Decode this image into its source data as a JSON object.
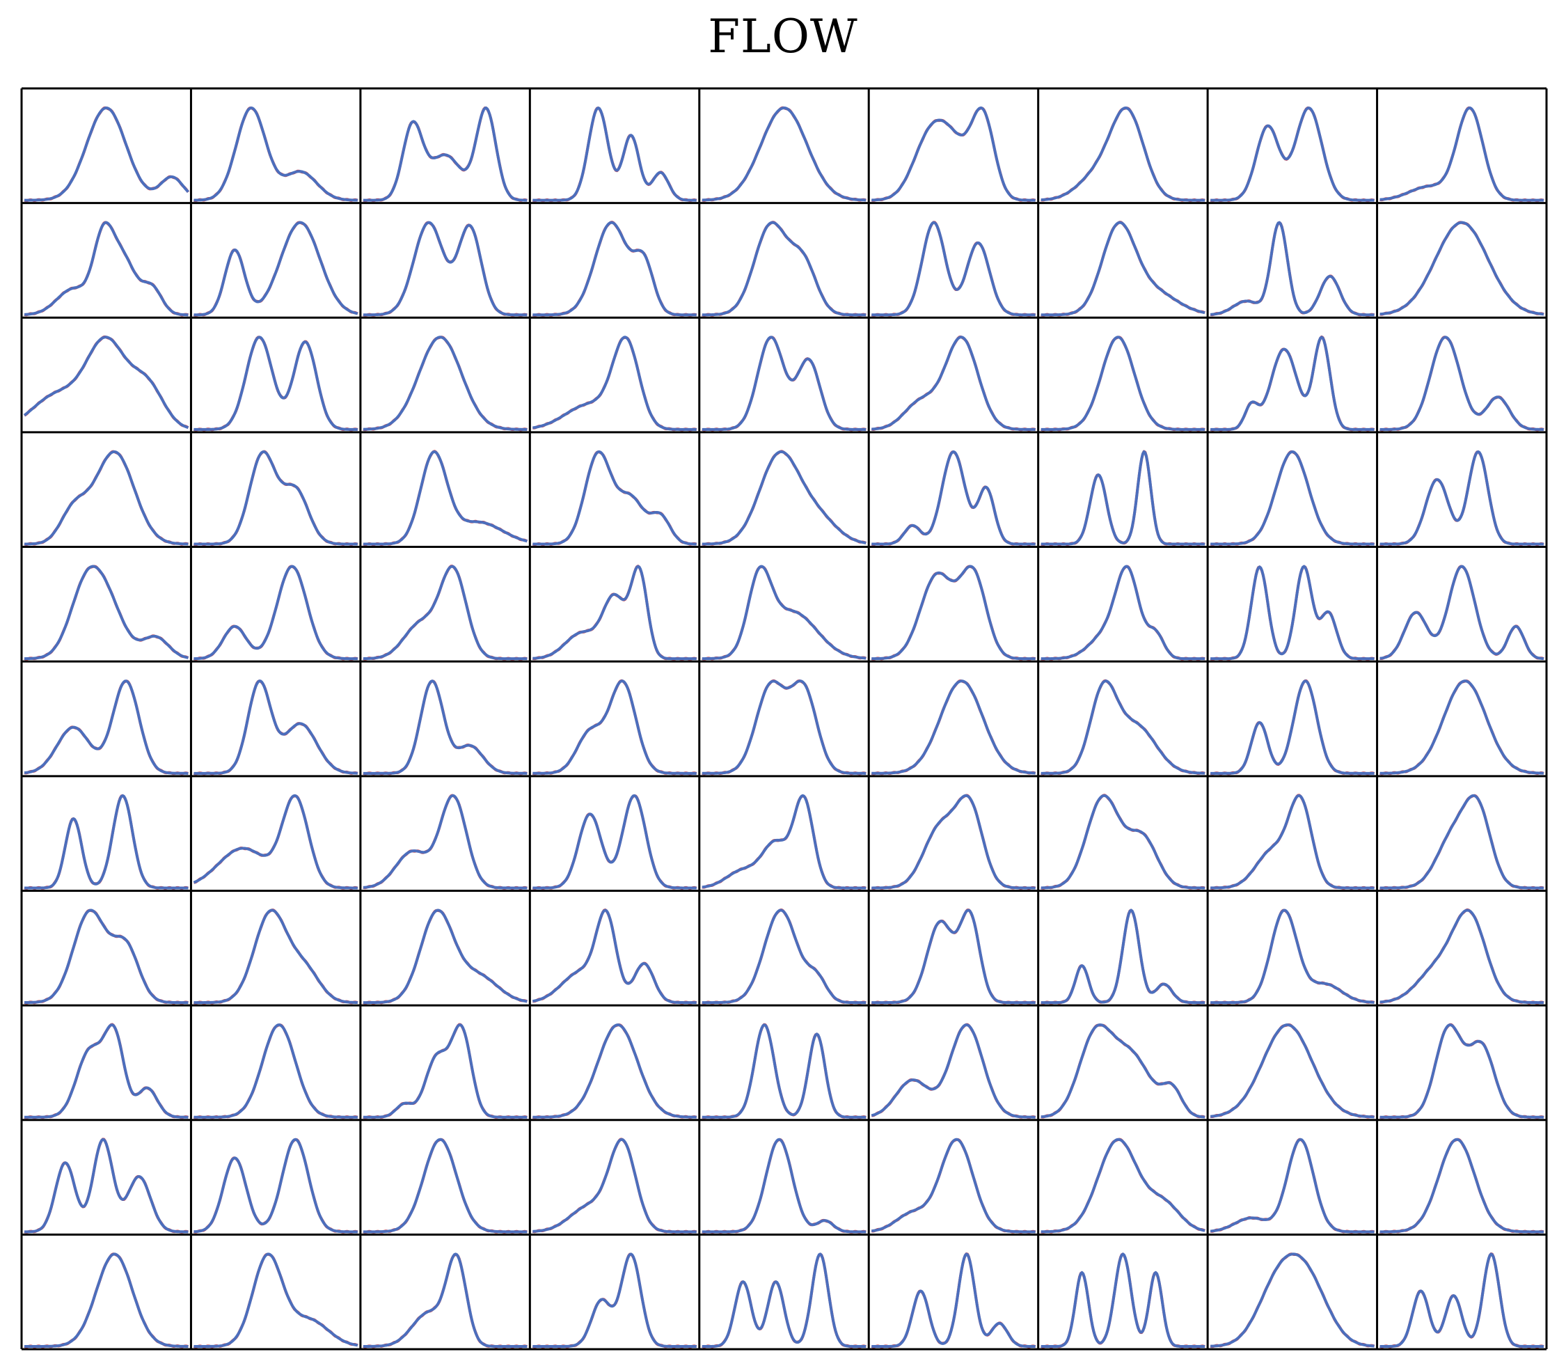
{
  "title": "FLOW",
  "chart_data": {
    "type": "line",
    "title": "FLOW",
    "layout": {
      "rows": 11,
      "cols": 9
    },
    "colors": {
      "true": "#d6474b",
      "model": "#4c6ebc",
      "frame": "#000000"
    },
    "x": [
      0,
      0.25,
      0.5,
      0.75,
      1
    ],
    "panels": [
      [
        [
          0.6,
          0.5,
          0.12
        ],
        [
          0.15,
          0.9,
          0.07
        ]
      ],
      [
        [
          0.3,
          0.65,
          0.1
        ],
        [
          0.97,
          0.35,
          0.09
        ]
      ],
      [
        [
          0.8,
          0.3,
          0.06
        ],
        [
          0.5,
          0.5,
          0.1
        ],
        [
          1,
          0.75,
          0.06
        ]
      ],
      [
        [
          1,
          0.4,
          0.06
        ],
        [
          0.7,
          0.6,
          0.05
        ],
        [
          0.3,
          0.78,
          0.05
        ]
      ],
      [
        [
          1,
          0.5,
          0.14
        ]
      ],
      [
        [
          0.7,
          0.35,
          0.1
        ],
        [
          0.6,
          0.5,
          0.1
        ],
        [
          1,
          0.68,
          0.07
        ]
      ],
      [
        [
          0.3,
          0.35,
          0.12
        ],
        [
          1,
          0.53,
          0.1
        ]
      ],
      [
        [
          0.8,
          0.35,
          0.07
        ],
        [
          1,
          0.6,
          0.08
        ]
      ],
      [
        [
          0.15,
          0.3,
          0.12
        ],
        [
          1,
          0.55,
          0.08
        ]
      ],
      [
        [
          0.35,
          0.3,
          0.1
        ],
        [
          0.9,
          0.48,
          0.06
        ],
        [
          0.75,
          0.6,
          0.08
        ],
        [
          0.35,
          0.78,
          0.06
        ]
      ],
      [
        [
          0.7,
          0.25,
          0.06
        ],
        [
          1,
          0.65,
          0.12
        ]
      ],
      [
        [
          1,
          0.4,
          0.09
        ],
        [
          0.95,
          0.65,
          0.07
        ]
      ],
      [
        [
          0.95,
          0.48,
          0.1
        ],
        [
          0.5,
          0.68,
          0.06
        ]
      ],
      [
        [
          1,
          0.42,
          0.1
        ],
        [
          0.55,
          0.62,
          0.08
        ]
      ],
      [
        [
          1,
          0.38,
          0.07
        ],
        [
          0.78,
          0.65,
          0.07
        ]
      ],
      [
        [
          1,
          0.47,
          0.1
        ],
        [
          0.3,
          0.67,
          0.15
        ]
      ],
      [
        [
          0.15,
          0.22,
          0.08
        ],
        [
          1,
          0.42,
          0.05
        ],
        [
          0.42,
          0.73,
          0.06
        ]
      ],
      [
        [
          1,
          0.5,
          0.16
        ]
      ],
      [
        [
          0.4,
          0.2,
          0.15
        ],
        [
          1,
          0.5,
          0.12
        ],
        [
          0.5,
          0.75,
          0.1
        ]
      ],
      [
        [
          0.95,
          0.4,
          0.08
        ],
        [
          0.9,
          0.68,
          0.07
        ]
      ],
      [
        [
          1,
          0.47,
          0.13
        ]
      ],
      [
        [
          0.3,
          0.35,
          0.15
        ],
        [
          1,
          0.57,
          0.08
        ]
      ],
      [
        [
          1,
          0.42,
          0.08
        ],
        [
          0.75,
          0.65,
          0.07
        ]
      ],
      [
        [
          0.3,
          0.3,
          0.1
        ],
        [
          1,
          0.55,
          0.1
        ]
      ],
      [
        [
          1,
          0.47,
          0.1
        ]
      ],
      [
        [
          0.22,
          0.25,
          0.04
        ],
        [
          0.75,
          0.45,
          0.08
        ],
        [
          0.85,
          0.68,
          0.05
        ]
      ],
      [
        [
          1,
          0.4,
          0.09
        ],
        [
          0.35,
          0.72,
          0.07
        ]
      ],
      [
        [
          0.35,
          0.3,
          0.08
        ],
        [
          1,
          0.55,
          0.12
        ]
      ],
      [
        [
          1,
          0.42,
          0.08
        ],
        [
          0.6,
          0.62,
          0.08
        ]
      ],
      [
        [
          1,
          0.43,
          0.08
        ],
        [
          0.25,
          0.7,
          0.15
        ]
      ],
      [
        [
          1,
          0.4,
          0.08
        ],
        [
          0.5,
          0.6,
          0.08
        ],
        [
          0.3,
          0.78,
          0.06
        ]
      ],
      [
        [
          1,
          0.47,
          0.12
        ],
        [
          0.3,
          0.7,
          0.12
        ]
      ],
      [
        [
          0.2,
          0.25,
          0.05
        ],
        [
          1,
          0.5,
          0.07
        ],
        [
          0.6,
          0.7,
          0.05
        ]
      ],
      [
        [
          0.75,
          0.35,
          0.05
        ],
        [
          1,
          0.63,
          0.04
        ]
      ],
      [
        [
          1,
          0.5,
          0.1
        ]
      ],
      [
        [
          0.7,
          0.35,
          0.07
        ],
        [
          1,
          0.6,
          0.06
        ]
      ],
      [
        [
          1,
          0.38,
          0.1
        ],
        [
          0.6,
          0.52,
          0.1
        ],
        [
          0.3,
          0.8,
          0.08
        ]
      ],
      [
        [
          0.35,
          0.25,
          0.07
        ],
        [
          1,
          0.6,
          0.09
        ]
      ],
      [
        [
          0.4,
          0.35,
          0.1
        ],
        [
          1,
          0.55,
          0.08
        ]
      ],
      [
        [
          0.3,
          0.3,
          0.1
        ],
        [
          0.7,
          0.5,
          0.07
        ],
        [
          1,
          0.65,
          0.05
        ]
      ],
      [
        [
          1,
          0.35,
          0.07
        ],
        [
          0.65,
          0.55,
          0.15
        ]
      ],
      [
        [
          0.9,
          0.4,
          0.1
        ],
        [
          0.9,
          0.62,
          0.08
        ]
      ],
      [
        [
          0.3,
          0.4,
          0.1
        ],
        [
          1,
          0.53,
          0.07
        ],
        [
          0.3,
          0.7,
          0.05
        ]
      ],
      [
        [
          1,
          0.3,
          0.05
        ],
        [
          1,
          0.57,
          0.05
        ],
        [
          0.5,
          0.72,
          0.05
        ]
      ],
      [
        [
          0.5,
          0.22,
          0.07
        ],
        [
          1,
          0.5,
          0.08
        ],
        [
          0.35,
          0.83,
          0.05
        ]
      ],
      [
        [
          0.5,
          0.3,
          0.1
        ],
        [
          1,
          0.62,
          0.08
        ]
      ],
      [
        [
          1,
          0.4,
          0.07
        ],
        [
          0.55,
          0.65,
          0.1
        ]
      ],
      [
        [
          1,
          0.42,
          0.07
        ],
        [
          0.3,
          0.65,
          0.08
        ]
      ],
      [
        [
          0.45,
          0.35,
          0.08
        ],
        [
          1,
          0.55,
          0.08
        ]
      ],
      [
        [
          0.95,
          0.42,
          0.09
        ],
        [
          0.9,
          0.62,
          0.08
        ]
      ],
      [
        [
          1,
          0.55,
          0.13
        ]
      ],
      [
        [
          1,
          0.38,
          0.08
        ],
        [
          0.6,
          0.58,
          0.12
        ]
      ],
      [
        [
          0.55,
          0.3,
          0.05
        ],
        [
          1,
          0.58,
          0.07
        ]
      ],
      [
        [
          1,
          0.52,
          0.13
        ]
      ],
      [
        [
          0.75,
          0.3,
          0.05
        ],
        [
          1,
          0.6,
          0.06
        ]
      ],
      [
        [
          0.45,
          0.3,
          0.15
        ],
        [
          1,
          0.62,
          0.08
        ]
      ],
      [
        [
          0.4,
          0.3,
          0.1
        ],
        [
          1,
          0.55,
          0.08
        ]
      ],
      [
        [
          0.8,
          0.35,
          0.07
        ],
        [
          1,
          0.62,
          0.07
        ]
      ],
      [
        [
          0.2,
          0.25,
          0.1
        ],
        [
          0.5,
          0.45,
          0.08
        ],
        [
          1,
          0.62,
          0.06
        ]
      ],
      [
        [
          0.7,
          0.42,
          0.1
        ],
        [
          0.9,
          0.6,
          0.08
        ]
      ],
      [
        [
          1,
          0.38,
          0.1
        ],
        [
          0.55,
          0.62,
          0.09
        ]
      ],
      [
        [
          0.45,
          0.38,
          0.1
        ],
        [
          1,
          0.55,
          0.07
        ]
      ],
      [
        [
          0.65,
          0.45,
          0.1
        ],
        [
          0.9,
          0.6,
          0.08
        ]
      ],
      [
        [
          1,
          0.4,
          0.1
        ],
        [
          0.6,
          0.62,
          0.08
        ]
      ],
      [
        [
          1,
          0.47,
          0.1
        ],
        [
          0.35,
          0.68,
          0.09
        ]
      ],
      [
        [
          1,
          0.45,
          0.1
        ],
        [
          0.3,
          0.7,
          0.12
        ]
      ],
      [
        [
          0.4,
          0.3,
          0.12
        ],
        [
          1,
          0.45,
          0.06
        ],
        [
          0.5,
          0.68,
          0.06
        ]
      ],
      [
        [
          1,
          0.48,
          0.1
        ],
        [
          0.25,
          0.7,
          0.06
        ]
      ],
      [
        [
          0.85,
          0.42,
          0.08
        ],
        [
          0.9,
          0.6,
          0.06
        ]
      ],
      [
        [
          0.4,
          0.25,
          0.04
        ],
        [
          1,
          0.55,
          0.05
        ],
        [
          0.2,
          0.75,
          0.05
        ]
      ],
      [
        [
          1,
          0.45,
          0.08
        ],
        [
          0.2,
          0.7,
          0.1
        ]
      ],
      [
        [
          0.4,
          0.35,
          0.12
        ],
        [
          1,
          0.55,
          0.1
        ]
      ],
      [
        [
          0.8,
          0.4,
          0.08
        ],
        [
          0.95,
          0.55,
          0.06
        ],
        [
          0.35,
          0.75,
          0.06
        ]
      ],
      [
        [
          1,
          0.52,
          0.1
        ]
      ],
      [
        [
          0.15,
          0.25,
          0.05
        ],
        [
          0.7,
          0.45,
          0.07
        ],
        [
          1,
          0.6,
          0.06
        ]
      ],
      [
        [
          1,
          0.52,
          0.12
        ]
      ],
      [
        [
          1,
          0.38,
          0.06
        ],
        [
          0.9,
          0.7,
          0.05
        ]
      ],
      [
        [
          0.4,
          0.25,
          0.1
        ],
        [
          1,
          0.58,
          0.1
        ]
      ],
      [
        [
          0.9,
          0.33,
          0.1
        ],
        [
          0.7,
          0.55,
          0.12
        ],
        [
          0.3,
          0.8,
          0.06
        ]
      ],
      [
        [
          1,
          0.47,
          0.15
        ]
      ],
      [
        [
          1,
          0.42,
          0.08
        ],
        [
          0.8,
          0.62,
          0.08
        ]
      ],
      [
        [
          0.75,
          0.25,
          0.06
        ],
        [
          1,
          0.48,
          0.06
        ],
        [
          0.6,
          0.7,
          0.07
        ]
      ],
      [
        [
          0.8,
          0.25,
          0.07
        ],
        [
          1,
          0.62,
          0.08
        ]
      ],
      [
        [
          1,
          0.47,
          0.1
        ]
      ],
      [
        [
          0.3,
          0.35,
          0.12
        ],
        [
          1,
          0.55,
          0.08
        ]
      ],
      [
        [
          1,
          0.47,
          0.08
        ],
        [
          0.12,
          0.75,
          0.05
        ]
      ],
      [
        [
          0.2,
          0.25,
          0.1
        ],
        [
          1,
          0.52,
          0.1
        ]
      ],
      [
        [
          1,
          0.47,
          0.12
        ],
        [
          0.3,
          0.75,
          0.1
        ]
      ],
      [
        [
          0.15,
          0.25,
          0.1
        ],
        [
          1,
          0.55,
          0.08
        ]
      ],
      [
        [
          1,
          0.47,
          0.11
        ]
      ],
      [
        [
          1,
          0.55,
          0.11
        ]
      ],
      [
        [
          1,
          0.45,
          0.09
        ],
        [
          0.3,
          0.7,
          0.12
        ]
      ],
      [
        [
          0.4,
          0.4,
          0.1
        ],
        [
          1,
          0.57,
          0.06
        ]
      ],
      [
        [
          0.5,
          0.42,
          0.06
        ],
        [
          1,
          0.6,
          0.06
        ]
      ],
      [
        [
          0.7,
          0.25,
          0.05
        ],
        [
          0.7,
          0.45,
          0.05
        ],
        [
          1,
          0.72,
          0.05
        ]
      ],
      [
        [
          0.6,
          0.3,
          0.05
        ],
        [
          1,
          0.58,
          0.05
        ],
        [
          0.25,
          0.78,
          0.05
        ]
      ],
      [
        [
          0.8,
          0.25,
          0.04
        ],
        [
          1,
          0.5,
          0.05
        ],
        [
          0.8,
          0.7,
          0.04
        ]
      ],
      [
        [
          0.75,
          0.4,
          0.12
        ],
        [
          1,
          0.58,
          0.13
        ]
      ],
      [
        [
          0.6,
          0.25,
          0.05
        ],
        [
          0.55,
          0.45,
          0.05
        ],
        [
          1,
          0.68,
          0.05
        ]
      ]
    ]
  }
}
